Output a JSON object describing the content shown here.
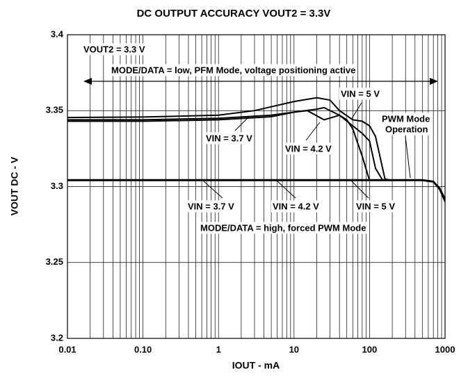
{
  "chart_data": {
    "type": "line",
    "title": "DC OUTPUT ACCURACY VOUT2 = 3.3V",
    "x_label": "IOUT - mA",
    "y_label": "VOUT DC - V",
    "log_x": true,
    "grid": true,
    "xlim": [
      0.01,
      1000
    ],
    "ylim": [
      3.2,
      3.4
    ],
    "xticks": [
      0.01,
      {
        "value": 0.1,
        "label": "0.10"
      },
      1,
      10,
      100,
      1000
    ],
    "yticks": [
      3.2,
      3.25,
      3.3,
      3.35,
      3.4
    ],
    "series": [
      {
        "name": "VIN = 5 V",
        "color": "#000000",
        "x": [
          0.01,
          0.1,
          1,
          3,
          10,
          20,
          30,
          40,
          60,
          80,
          100,
          120,
          140,
          160,
          200
        ],
        "values": [
          3.3455,
          3.3458,
          3.347,
          3.35,
          3.356,
          3.3585,
          3.357,
          3.35,
          3.344,
          3.343,
          3.34,
          3.333,
          3.318,
          3.305,
          3.304
        ]
      },
      {
        "name": "VIN = 4.2 V",
        "color": "#000000",
        "x": [
          0.01,
          0.1,
          1,
          5,
          10,
          20,
          25,
          40,
          60,
          80,
          100,
          120,
          150
        ],
        "values": [
          3.344,
          3.344,
          3.345,
          3.347,
          3.349,
          3.351,
          3.352,
          3.347,
          3.34,
          3.335,
          3.33,
          3.312,
          3.304
        ]
      },
      {
        "name": "VIN = 3.7 V",
        "color": "#000000",
        "x": [
          0.01,
          0.1,
          1,
          5,
          10,
          15,
          25,
          40,
          50,
          60,
          80,
          100
        ],
        "values": [
          3.343,
          3.343,
          3.344,
          3.346,
          3.349,
          3.35,
          3.344,
          3.347,
          3.344,
          3.338,
          3.32,
          3.304
        ]
      },
      {
        "name": "VIN = 3.7 V",
        "color": "#000000",
        "x": [
          0.01,
          1,
          10,
          100,
          500,
          700,
          850,
          1000
        ],
        "values": [
          3.304,
          3.304,
          3.304,
          3.304,
          3.304,
          3.303,
          3.298,
          3.29
        ]
      },
      {
        "name": "VIN = 4.2 V",
        "color": "#000000",
        "x": [
          0.01,
          1,
          10,
          100,
          500,
          700,
          850,
          1000
        ],
        "values": [
          3.3042,
          3.3042,
          3.3042,
          3.3042,
          3.3042,
          3.3032,
          3.2985,
          3.291
        ]
      },
      {
        "name": "VIN = 5 V",
        "color": "#000000",
        "x": [
          0.01,
          1,
          10,
          100,
          500,
          700,
          850,
          1000
        ],
        "values": [
          3.3045,
          3.3045,
          3.3045,
          3.3045,
          3.3045,
          3.3035,
          3.299,
          3.292
        ]
      }
    ],
    "annotations": [
      "VOUT2 = 3.3 V",
      "MODE/DATA = low, PFM Mode, voltage positioning active",
      "VIN = 5 V",
      "PWM Mode",
      "Operation",
      "VIN = 3.7 V",
      "VIN = 4.2 V",
      "VIN = 3.7 V",
      "VIN = 4.2 V",
      "VIN = 5 V",
      "MODE/DATA = high, forced PWM Mode"
    ]
  }
}
